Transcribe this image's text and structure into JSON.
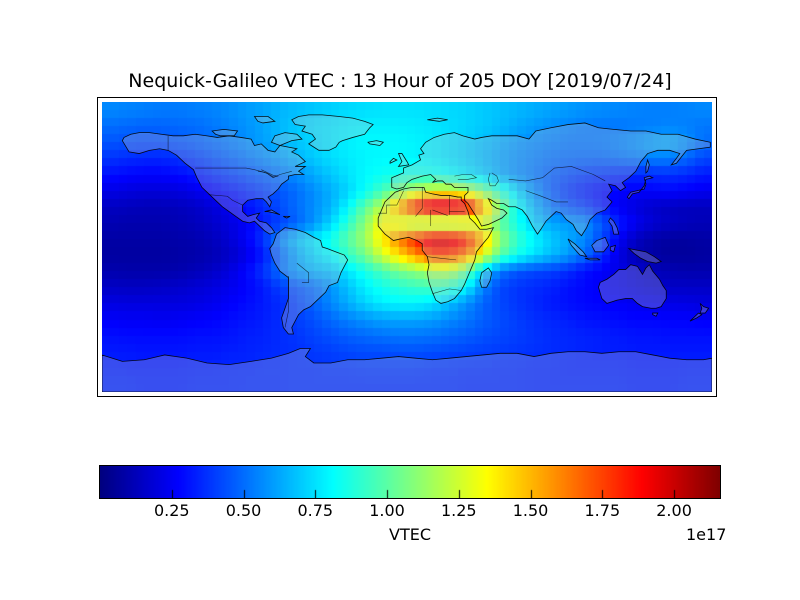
{
  "title": "Nequick-Galileo VTEC : 13 Hour of 205 DOY [2019/07/24]",
  "colorbar": {
    "label": "VTEC",
    "offset_label": "1e17",
    "tick_labels": [
      "0.25",
      "0.50",
      "0.75",
      "1.00",
      "1.25",
      "1.50",
      "1.75",
      "2.00"
    ],
    "tick_values": [
      0.25,
      0.5,
      0.75,
      1.0,
      1.25,
      1.5,
      1.75,
      2.0
    ],
    "vmin": 0.0,
    "vmax": 2.16,
    "colormap": "jet",
    "orientation": "horizontal"
  },
  "chart_data": {
    "type": "heatmap",
    "title": "Nequick-Galileo VTEC : 13 Hour of 205 DOY [2019/07/24]",
    "colorbar_label": "VTEC",
    "scale_factor": "1e17",
    "colormap": "jet",
    "vmin": 0.0,
    "vmax": 2.16,
    "projection": "equirectangular world map with coastlines",
    "lon_range": [
      -180,
      180
    ],
    "lat_range": [
      -90,
      90
    ],
    "cell_size_deg": 10,
    "lat_centers": [
      85,
      75,
      65,
      55,
      45,
      35,
      25,
      15,
      5,
      -5,
      -15,
      -25,
      -35,
      -45,
      -55,
      -65,
      -75,
      -85
    ],
    "lon_centers": [
      -175,
      -165,
      -155,
      -145,
      -135,
      -125,
      -115,
      -105,
      -95,
      -85,
      -75,
      -65,
      -55,
      -45,
      -35,
      -25,
      -15,
      -5,
      5,
      15,
      25,
      35,
      45,
      55,
      65,
      75,
      85,
      95,
      105,
      115,
      125,
      135,
      145,
      155,
      165,
      175
    ],
    "values_unit": "1e17",
    "values": [
      [
        0.56,
        0.55,
        0.54,
        0.53,
        0.53,
        0.54,
        0.55,
        0.57,
        0.6,
        0.62,
        0.65,
        0.67,
        0.69,
        0.71,
        0.73,
        0.74,
        0.75,
        0.75,
        0.75,
        0.74,
        0.73,
        0.72,
        0.7,
        0.68,
        0.66,
        0.64,
        0.62,
        0.6,
        0.58,
        0.57,
        0.56,
        0.55,
        0.54,
        0.54,
        0.55,
        0.56
      ],
      [
        0.5,
        0.49,
        0.48,
        0.48,
        0.49,
        0.5,
        0.52,
        0.55,
        0.58,
        0.62,
        0.66,
        0.7,
        0.73,
        0.75,
        0.77,
        0.78,
        0.78,
        0.78,
        0.77,
        0.76,
        0.74,
        0.72,
        0.7,
        0.67,
        0.63,
        0.6,
        0.57,
        0.55,
        0.53,
        0.52,
        0.52,
        0.53,
        0.54,
        0.55,
        0.54,
        0.52
      ],
      [
        0.45,
        0.44,
        0.43,
        0.44,
        0.45,
        0.47,
        0.5,
        0.53,
        0.57,
        0.61,
        0.65,
        0.69,
        0.72,
        0.75,
        0.78,
        0.8,
        0.8,
        0.8,
        0.79,
        0.77,
        0.74,
        0.71,
        0.67,
        0.63,
        0.59,
        0.56,
        0.54,
        0.52,
        0.52,
        0.53,
        0.55,
        0.58,
        0.62,
        0.64,
        0.58,
        0.5
      ],
      [
        0.38,
        0.36,
        0.35,
        0.35,
        0.37,
        0.4,
        0.44,
        0.48,
        0.52,
        0.56,
        0.6,
        0.65,
        0.7,
        0.74,
        0.77,
        0.79,
        0.8,
        0.8,
        0.79,
        0.77,
        0.74,
        0.7,
        0.66,
        0.61,
        0.57,
        0.54,
        0.51,
        0.5,
        0.49,
        0.49,
        0.51,
        0.53,
        0.55,
        0.54,
        0.49,
        0.42
      ],
      [
        0.3,
        0.28,
        0.27,
        0.27,
        0.29,
        0.32,
        0.36,
        0.4,
        0.44,
        0.48,
        0.52,
        0.57,
        0.63,
        0.69,
        0.75,
        0.8,
        0.83,
        0.85,
        0.86,
        0.85,
        0.81,
        0.76,
        0.7,
        0.63,
        0.57,
        0.52,
        0.47,
        0.43,
        0.4,
        0.38,
        0.36,
        0.35,
        0.36,
        0.37,
        0.35,
        0.32
      ],
      [
        0.22,
        0.2,
        0.19,
        0.19,
        0.2,
        0.23,
        0.27,
        0.31,
        0.35,
        0.4,
        0.45,
        0.5,
        0.57,
        0.64,
        0.72,
        0.82,
        0.95,
        1.08,
        1.2,
        1.28,
        1.28,
        1.22,
        1.08,
        0.9,
        0.72,
        0.57,
        0.46,
        0.38,
        0.33,
        0.29,
        0.27,
        0.26,
        0.27,
        0.28,
        0.26,
        0.24
      ],
      [
        0.14,
        0.13,
        0.12,
        0.12,
        0.13,
        0.15,
        0.19,
        0.24,
        0.3,
        0.36,
        0.43,
        0.5,
        0.57,
        0.65,
        0.8,
        1.0,
        1.2,
        1.55,
        1.9,
        2.1,
        2.1,
        2.0,
        1.55,
        1.1,
        0.82,
        0.65,
        0.52,
        0.45,
        0.4,
        0.32,
        0.25,
        0.2,
        0.16,
        0.14,
        0.13,
        0.13
      ],
      [
        0.11,
        0.1,
        0.1,
        0.1,
        0.11,
        0.13,
        0.16,
        0.2,
        0.26,
        0.33,
        0.4,
        0.48,
        0.58,
        0.72,
        0.9,
        1.1,
        1.35,
        1.25,
        1.1,
        1.05,
        1.05,
        1.12,
        1.25,
        1.0,
        0.85,
        0.7,
        0.62,
        0.6,
        0.58,
        0.46,
        0.33,
        0.24,
        0.18,
        0.15,
        0.13,
        0.12
      ],
      [
        0.08,
        0.08,
        0.08,
        0.08,
        0.09,
        0.1,
        0.13,
        0.18,
        0.26,
        0.38,
        0.55,
        0.68,
        0.76,
        0.85,
        1.0,
        1.15,
        1.38,
        1.62,
        1.82,
        2.0,
        2.0,
        1.85,
        1.5,
        1.12,
        0.92,
        0.8,
        0.7,
        0.63,
        0.56,
        0.42,
        0.26,
        0.14,
        0.09,
        0.07,
        0.07,
        0.08
      ],
      [
        0.07,
        0.07,
        0.07,
        0.07,
        0.08,
        0.09,
        0.11,
        0.15,
        0.22,
        0.32,
        0.48,
        0.62,
        0.72,
        0.8,
        0.92,
        1.05,
        1.25,
        1.42,
        1.58,
        1.75,
        1.75,
        1.62,
        1.3,
        1.0,
        0.85,
        0.75,
        0.67,
        0.6,
        0.5,
        0.36,
        0.21,
        0.11,
        0.08,
        0.06,
        0.06,
        0.07
      ],
      [
        0.1,
        0.09,
        0.09,
        0.09,
        0.1,
        0.12,
        0.15,
        0.2,
        0.28,
        0.38,
        0.5,
        0.6,
        0.65,
        0.68,
        0.76,
        0.86,
        0.96,
        1.05,
        1.1,
        1.18,
        1.2,
        1.02,
        0.72,
        0.52,
        0.45,
        0.42,
        0.4,
        0.36,
        0.3,
        0.26,
        0.22,
        0.17,
        0.13,
        0.11,
        0.1,
        0.1
      ],
      [
        0.15,
        0.14,
        0.14,
        0.15,
        0.16,
        0.18,
        0.2,
        0.23,
        0.27,
        0.32,
        0.4,
        0.45,
        0.5,
        0.58,
        0.68,
        0.78,
        0.85,
        0.9,
        0.93,
        0.95,
        0.92,
        0.8,
        0.55,
        0.42,
        0.38,
        0.36,
        0.34,
        0.3,
        0.28,
        0.25,
        0.22,
        0.19,
        0.17,
        0.15,
        0.15,
        0.15
      ],
      [
        0.21,
        0.2,
        0.2,
        0.2,
        0.2,
        0.21,
        0.23,
        0.26,
        0.29,
        0.32,
        0.36,
        0.41,
        0.48,
        0.56,
        0.64,
        0.72,
        0.78,
        0.8,
        0.8,
        0.76,
        0.68,
        0.58,
        0.48,
        0.42,
        0.38,
        0.35,
        0.32,
        0.3,
        0.28,
        0.27,
        0.26,
        0.24,
        0.23,
        0.22,
        0.21,
        0.2
      ],
      [
        0.26,
        0.25,
        0.25,
        0.24,
        0.25,
        0.26,
        0.27,
        0.29,
        0.31,
        0.33,
        0.36,
        0.4,
        0.44,
        0.49,
        0.54,
        0.58,
        0.61,
        0.62,
        0.62,
        0.6,
        0.56,
        0.52,
        0.47,
        0.43,
        0.4,
        0.37,
        0.35,
        0.33,
        0.31,
        0.3,
        0.29,
        0.28,
        0.28,
        0.27,
        0.27,
        0.26
      ],
      [
        0.3,
        0.29,
        0.29,
        0.29,
        0.29,
        0.3,
        0.3,
        0.31,
        0.33,
        0.34,
        0.36,
        0.38,
        0.41,
        0.44,
        0.47,
        0.49,
        0.51,
        0.52,
        0.52,
        0.51,
        0.49,
        0.47,
        0.44,
        0.42,
        0.4,
        0.38,
        0.36,
        0.35,
        0.34,
        0.33,
        0.32,
        0.31,
        0.31,
        0.3,
        0.3,
        0.3
      ],
      [
        0.32,
        0.32,
        0.31,
        0.31,
        0.31,
        0.32,
        0.32,
        0.33,
        0.34,
        0.35,
        0.36,
        0.37,
        0.39,
        0.4,
        0.42,
        0.43,
        0.43,
        0.44,
        0.44,
        0.43,
        0.42,
        0.41,
        0.4,
        0.39,
        0.38,
        0.37,
        0.36,
        0.35,
        0.34,
        0.33,
        0.33,
        0.32,
        0.32,
        0.32,
        0.32,
        0.32
      ],
      [
        0.34,
        0.33,
        0.33,
        0.33,
        0.33,
        0.34,
        0.34,
        0.35,
        0.35,
        0.36,
        0.36,
        0.37,
        0.37,
        0.38,
        0.38,
        0.39,
        0.39,
        0.39,
        0.39,
        0.38,
        0.38,
        0.37,
        0.37,
        0.36,
        0.36,
        0.35,
        0.35,
        0.34,
        0.34,
        0.34,
        0.34,
        0.33,
        0.33,
        0.33,
        0.34,
        0.34
      ],
      [
        0.35,
        0.35,
        0.34,
        0.34,
        0.34,
        0.35,
        0.35,
        0.35,
        0.36,
        0.36,
        0.36,
        0.37,
        0.37,
        0.37,
        0.37,
        0.37,
        0.37,
        0.37,
        0.37,
        0.37,
        0.37,
        0.36,
        0.36,
        0.36,
        0.36,
        0.35,
        0.35,
        0.35,
        0.35,
        0.35,
        0.35,
        0.34,
        0.34,
        0.34,
        0.35,
        0.35
      ]
    ],
    "legend_position": "bottom horizontal colorbar",
    "grid": false,
    "land_overlay_color": "#c8c8c8",
    "coastline_color": "#000000",
    "peak_feature": "equatorial ionization anomaly crests over Africa (max ~2.1e17 near 25N and 3N, 10E-35E)",
    "min_feature": "night-side Pacific minima (~0.06e17 near the dateline)"
  }
}
